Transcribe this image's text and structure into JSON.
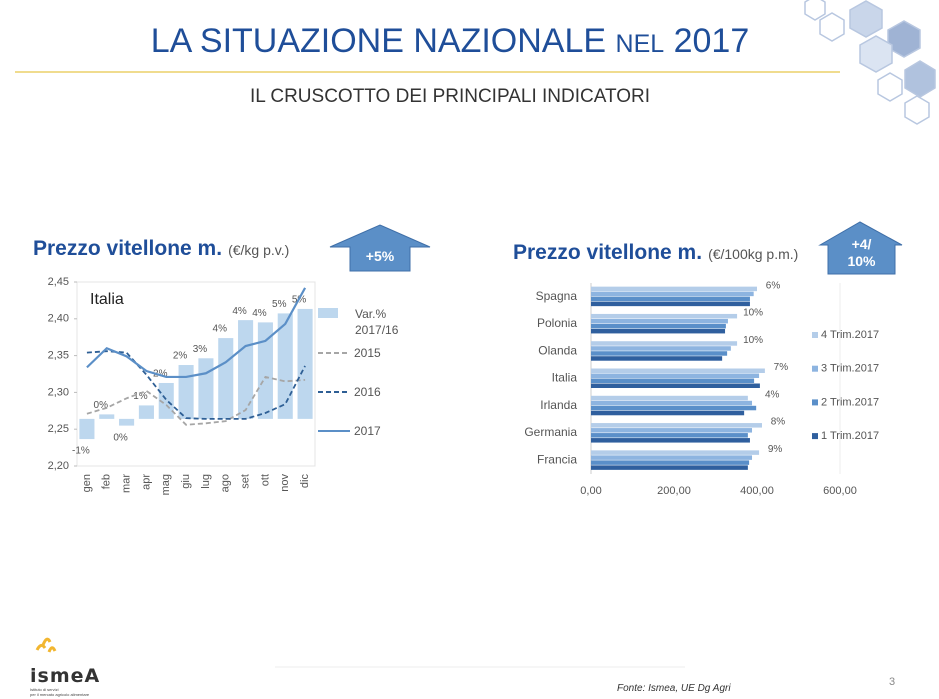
{
  "slide": {
    "title": [
      "LA SITUAZIONE NAZIONALE ",
      "NEL",
      " 2017"
    ],
    "subtitle": "IL CRUSCOTTO DEI PRINCIPALI INDICATORI",
    "badges": [
      [
        "+5%"
      ],
      [
        "+4/",
        "10%"
      ]
    ],
    "source": "Fonte: Ismea, UE Dg Agri",
    "page_number": "3",
    "logo": "ismeA",
    "logo_caption": [
      "Istituto di servizi",
      "per il mercato agricolo alimentare"
    ]
  },
  "chart_data": [
    {
      "type": "combo",
      "title": "Prezzo vitellone m.",
      "unit": "(€/kg p.v.)",
      "annotation": "Italia",
      "categories": [
        "gen",
        "feb",
        "mar",
        "apr",
        "mag",
        "giu",
        "lug",
        "ago",
        "set",
        "ott",
        "nov",
        "dic"
      ],
      "ylim": [
        2.2,
        2.45
      ],
      "yticks": [
        {
          "value": 2.2,
          "label": "2,20"
        },
        {
          "value": 2.25,
          "label": "2,25"
        },
        {
          "value": 2.3,
          "label": "2,30"
        },
        {
          "value": 2.35,
          "label": "2,35"
        },
        {
          "value": 2.4,
          "label": "2,40"
        },
        {
          "value": 2.45,
          "label": "2,45"
        }
      ],
      "y2lim": [
        -2.1,
        6.1
      ],
      "series": [
        {
          "name": "Var.% 2017/16",
          "kind": "bar",
          "axis": "y2",
          "color": "#bdd7ee",
          "values": [
            -0.9,
            0.2,
            -0.3,
            0.6,
            1.6,
            2.4,
            2.7,
            3.6,
            4.4,
            4.3,
            4.7,
            4.9
          ],
          "value_labels": [
            "-1%",
            "0%",
            "0%",
            "1%",
            "2%",
            "2%",
            "3%",
            "4%",
            "4%",
            "4%",
            "5%",
            "5%"
          ]
        },
        {
          "name": "2015",
          "kind": "line",
          "dash": true,
          "color": "#a6a6a6",
          "values": [
            2.271,
            2.279,
            2.292,
            2.302,
            2.283,
            2.256,
            2.258,
            2.261,
            2.276,
            2.321,
            2.315,
            2.317
          ]
        },
        {
          "name": "2016",
          "kind": "line",
          "dash": true,
          "color": "#2e5f95",
          "values": [
            2.354,
            2.356,
            2.354,
            2.324,
            2.29,
            2.265,
            2.264,
            2.264,
            2.264,
            2.272,
            2.284,
            2.336
          ]
        },
        {
          "name": "2017",
          "kind": "line",
          "dash": false,
          "color": "#5b8fc7",
          "values": [
            2.334,
            2.36,
            2.349,
            2.329,
            2.321,
            2.321,
            2.326,
            2.341,
            2.363,
            2.37,
            2.393,
            2.442
          ]
        }
      ]
    },
    {
      "type": "hbar",
      "title": "Prezzo vitellone m.",
      "unit": "(€/100kg p.m.)",
      "categories": [
        "Spagna",
        "Polonia",
        "Olanda",
        "Italia",
        "Irlanda",
        "Germania",
        "Francia"
      ],
      "annotations": [
        "6%",
        "10%",
        "10%",
        "7%",
        "4%",
        "8%",
        "9%"
      ],
      "xlim": [
        0,
        600
      ],
      "xticks": [
        {
          "value": 0,
          "label": "0,00"
        },
        {
          "value": 200,
          "label": "200,00"
        },
        {
          "value": 400,
          "label": "400,00"
        },
        {
          "value": 600,
          "label": "600,00"
        }
      ],
      "series": [
        {
          "name": "4 Trim.2017",
          "color": "#b4cde9",
          "values": [
            400,
            352,
            352,
            419,
            378,
            412,
            405
          ]
        },
        {
          "name": "3 Trim.2017",
          "color": "#8db4e0",
          "values": [
            392,
            330,
            337,
            405,
            388,
            388,
            388
          ]
        },
        {
          "name": "2 Trim.2017",
          "color": "#5a8fc9",
          "values": [
            383,
            325,
            328,
            393,
            398,
            378,
            381
          ]
        },
        {
          "name": "1 Trim.2017",
          "color": "#2f5f9e",
          "values": [
            383,
            323,
            316,
            407,
            369,
            383,
            378
          ]
        }
      ]
    }
  ]
}
